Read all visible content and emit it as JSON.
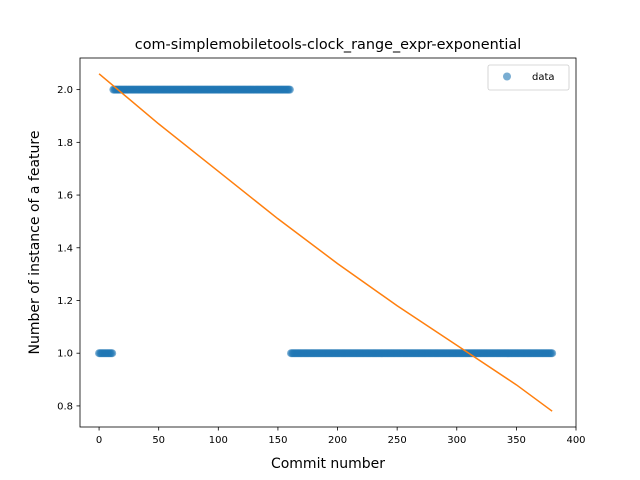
{
  "chart_data": {
    "type": "scatter",
    "title": "com-simplemobiletools-clock_range_expr-exponential",
    "xlabel": "Commit number",
    "ylabel": "Number of instance of a feature",
    "xlim": [
      -16,
      400
    ],
    "ylim": [
      0.72,
      2.12
    ],
    "xticks": [
      0,
      50,
      100,
      150,
      200,
      250,
      300,
      350,
      400
    ],
    "yticks": [
      0.8,
      1.0,
      1.2,
      1.4,
      1.6,
      1.8,
      2.0
    ],
    "grid": false,
    "legend": {
      "position": "top-right",
      "entries": [
        "data"
      ]
    },
    "colors": {
      "data": "#1f77b4",
      "fit": "#ff7f0e"
    },
    "series": [
      {
        "name": "data",
        "kind": "scatter",
        "segments": [
          {
            "x_start": 0,
            "x_end": 11,
            "y": 1.0
          },
          {
            "x_start": 12,
            "x_end": 160,
            "y": 2.0
          },
          {
            "x_start": 161,
            "x_end": 380,
            "y": 1.0
          }
        ]
      },
      {
        "kind": "line",
        "x": [
          0,
          50,
          100,
          150,
          200,
          250,
          300,
          350,
          380
        ],
        "y": [
          2.06,
          1.87,
          1.69,
          1.51,
          1.34,
          1.18,
          1.03,
          0.88,
          0.78
        ]
      }
    ]
  }
}
